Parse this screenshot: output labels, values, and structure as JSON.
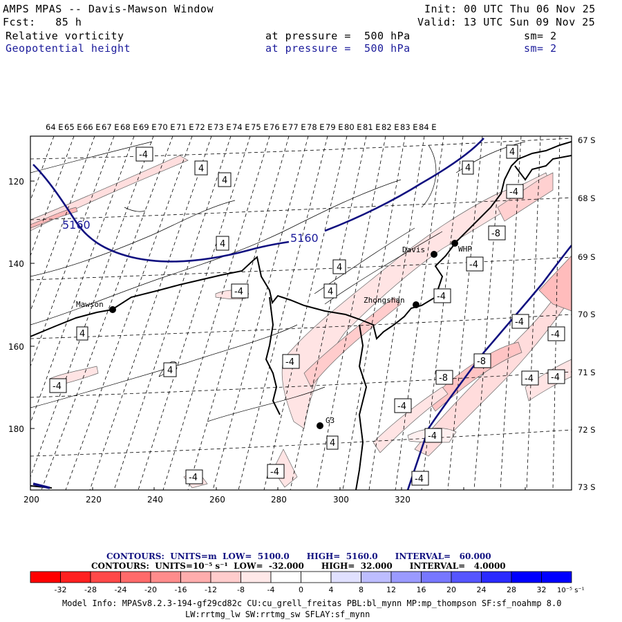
{
  "header": {
    "title": "AMPS MPAS -- Davis-Mawson Window",
    "fcst": "Fcst:   85 h",
    "init": "Init: 00 UTC Thu 06 Nov 25",
    "valid": "Valid: 13 UTC Sun 09 Nov 25",
    "field1_name": "Relative vorticity",
    "field1_level": "at pressure =  500 hPa",
    "field1_sm": "sm= 2",
    "field2_name": "Geopotential height",
    "field2_level": "at pressure =  500 hPa",
    "field2_sm": "sm= 2"
  },
  "map": {
    "top_lon_labels": [
      "64 E",
      "65 E",
      "66 E",
      "67 E",
      "68 E",
      "69 E",
      "70 E",
      "71 E",
      "72 E",
      "73 E",
      "74 E",
      "75 E",
      "76 E",
      "77 E",
      "78 E",
      "79 E",
      "80 E",
      "81 E",
      "82 E",
      "83 E",
      "84 E"
    ],
    "right_lat_labels": [
      "67 S",
      "68 S",
      "69 S",
      "70 S",
      "71 S",
      "72 S",
      "73 S"
    ],
    "left_y_labels": [
      "120",
      "140",
      "160",
      "180"
    ],
    "bottom_x_labels": [
      "200",
      "220",
      "240",
      "260",
      "280",
      "300",
      "320"
    ],
    "stations": [
      {
        "name": "Mawson"
      },
      {
        "name": "Davis"
      },
      {
        "name": "WHP"
      },
      {
        "name": "Zhongshan"
      },
      {
        "name": "G3"
      }
    ],
    "height_labels": [
      "5160",
      "5160"
    ],
    "vort_labels": [
      "-4",
      "4",
      "4",
      "4",
      "4",
      "4",
      "-4",
      "4",
      "4",
      "-4",
      "-4",
      "4",
      "-4",
      "-4",
      "4",
      "-4",
      "-8",
      "-4",
      "-4",
      "-8",
      "-4",
      "-8",
      "-4",
      "-4",
      "-4",
      "-4",
      "4",
      "-4",
      "-4",
      "-4",
      "4",
      "-4"
    ]
  },
  "legend": {
    "contours1": "CONTOURS:  UNITS=m  LOW=  5100.0      HIGH=  5160.0      INTERVAL=   60.000",
    "contours2": "CONTOURS:  UNITS=10⁻⁵ s⁻¹  LOW=  -32.000      HIGH=  32.000      INTERVAL=   4.0000",
    "tick_labels": [
      "-32",
      "-28",
      "-24",
      "-20",
      "-16",
      "-12",
      "-8",
      "-4",
      "0",
      "4",
      "8",
      "12",
      "16",
      "20",
      "24",
      "28",
      "32"
    ],
    "units": "10⁻⁵ s⁻¹",
    "colors": [
      "#ff0000",
      "#ff2020",
      "#ff4848",
      "#ff6a6a",
      "#ff8c8c",
      "#ffadad",
      "#ffcccc",
      "#ffe8e8",
      "#ffffff",
      "#ffffff",
      "#e0e0ff",
      "#bdbdff",
      "#9a9aff",
      "#7777ff",
      "#5555ff",
      "#2a2aff",
      "#0000ff"
    ]
  },
  "model_info": {
    "line1": "Model Info: MPASv8.2.3-194-gf29cd82c CU:cu_grell_freitas PBL:bl_mynn MP:mp_thompson SF:sf_noahmp 8.0",
    "line2": "LW:rrtmg_lw SW:rrtmg_sw SFLAY:sf_mynn"
  }
}
